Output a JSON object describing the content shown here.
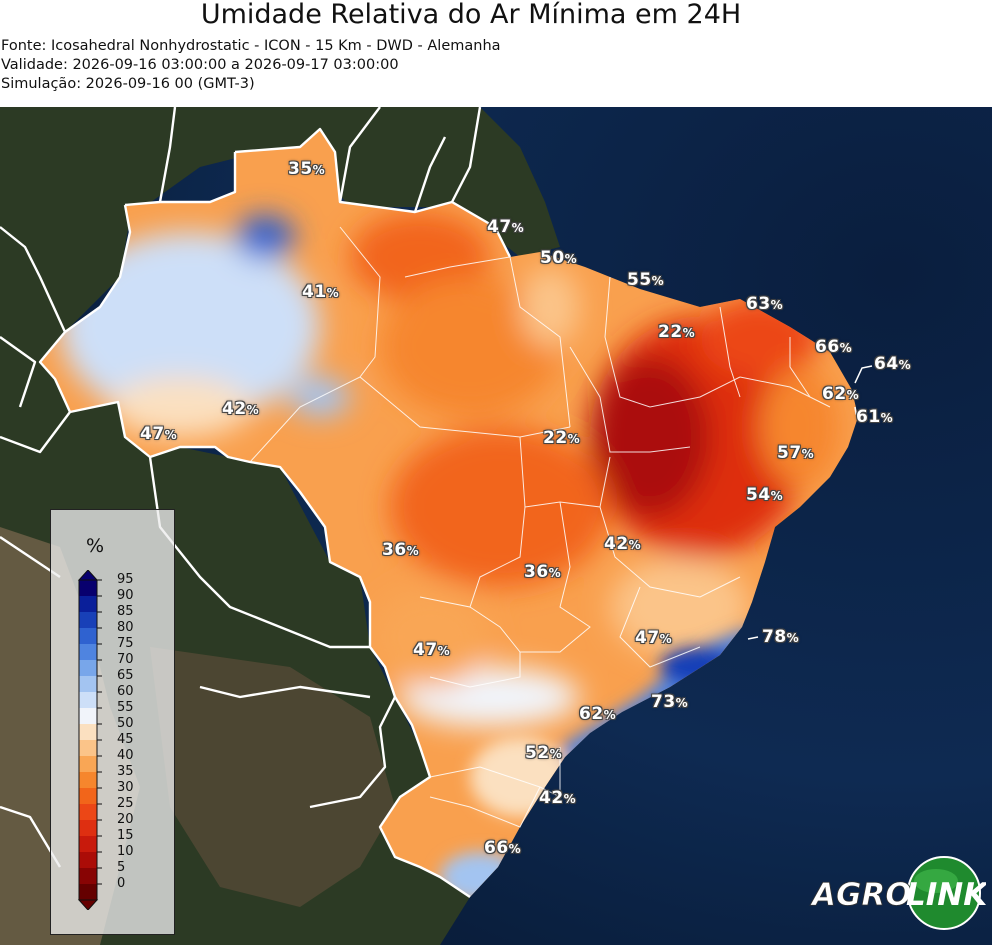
{
  "header": {
    "title": "Umidade Relativa do Ar Mínima em 24H",
    "source": "Fonte: Icosahedral Nonhydrostatic - ICON - 15 Km - DWD - Alemanha",
    "validity": "Validade: 2026-09-16 03:00:00 a 2026-09-17 03:00:00",
    "simulation": "Simulação: 2026-09-16 00 (GMT-3)"
  },
  "legend": {
    "title": "%",
    "ticks": [
      "95",
      "90",
      "85",
      "80",
      "75",
      "70",
      "65",
      "60",
      "55",
      "50",
      "45",
      "40",
      "35",
      "30",
      "25",
      "20",
      "15",
      "10",
      "5",
      "0"
    ],
    "colors": [
      "#08006e",
      "#0a1f9a",
      "#1840b8",
      "#2f62d0",
      "#4f84e0",
      "#78a6ea",
      "#a3c4f1",
      "#cddff8",
      "#f1f4fa",
      "#fbe0c0",
      "#fbc489",
      "#f9a655",
      "#f6862d",
      "#f2651a",
      "#ec4716",
      "#de2f11",
      "#c81a0c",
      "#ab0c07",
      "#880404",
      "#650000"
    ]
  },
  "labels": {
    "l1": {
      "value": "35",
      "unit": "%"
    },
    "l2": {
      "value": "47",
      "unit": "%"
    },
    "l3": {
      "value": "50",
      "unit": "%"
    },
    "l4": {
      "value": "41",
      "unit": "%"
    },
    "l5": {
      "value": "55",
      "unit": "%"
    },
    "l6": {
      "value": "63",
      "unit": "%"
    },
    "l7": {
      "value": "22",
      "unit": "%"
    },
    "l8": {
      "value": "66",
      "unit": "%"
    },
    "l9": {
      "value": "64",
      "unit": "%"
    },
    "l10": {
      "value": "62",
      "unit": "%"
    },
    "l11": {
      "value": "61",
      "unit": "%"
    },
    "l12": {
      "value": "42",
      "unit": "%"
    },
    "l13": {
      "value": "47",
      "unit": "%"
    },
    "l14": {
      "value": "22",
      "unit": "%"
    },
    "l15": {
      "value": "57",
      "unit": "%"
    },
    "l16": {
      "value": "54",
      "unit": "%"
    },
    "l17": {
      "value": "36",
      "unit": "%"
    },
    "l18": {
      "value": "42",
      "unit": "%"
    },
    "l19": {
      "value": "36",
      "unit": "%"
    },
    "l20": {
      "value": "47",
      "unit": "%"
    },
    "l21": {
      "value": "47",
      "unit": "%"
    },
    "l22": {
      "value": "78",
      "unit": "%"
    },
    "l23": {
      "value": "62",
      "unit": "%"
    },
    "l24": {
      "value": "73",
      "unit": "%"
    },
    "l25": {
      "value": "52",
      "unit": "%"
    },
    "l26": {
      "value": "42",
      "unit": "%"
    },
    "l27": {
      "value": "66",
      "unit": "%"
    }
  },
  "logo": {
    "left_text": "AGRO",
    "right_text": "LINK"
  }
}
